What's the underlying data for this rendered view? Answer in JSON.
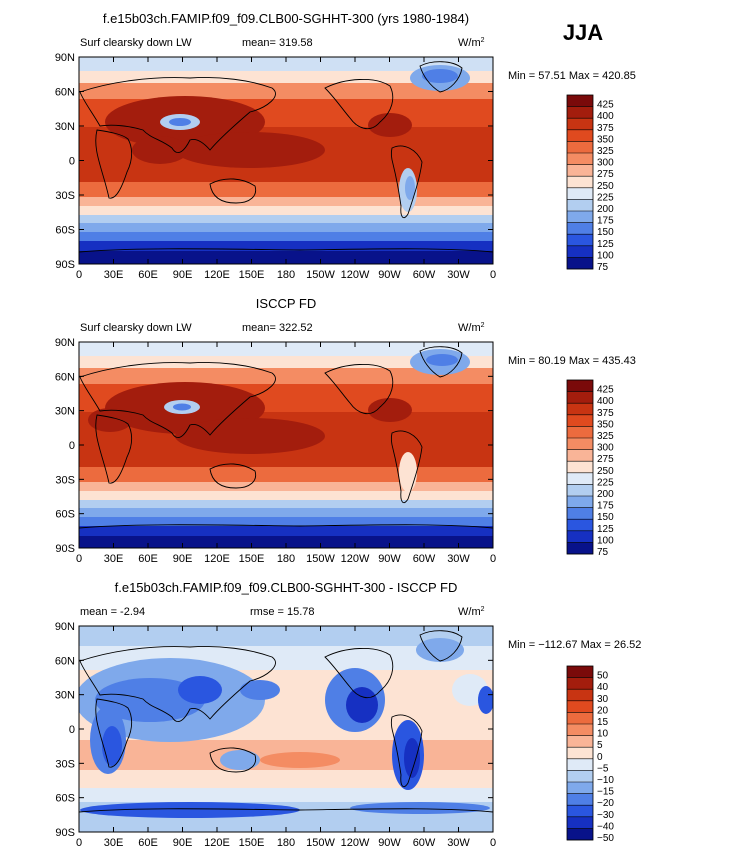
{
  "season": "JJA",
  "units": "W/m",
  "units_sup": "2",
  "lon_ticks": [
    "0",
    "30E",
    "60E",
    "90E",
    "120E",
    "150E",
    "180",
    "150W",
    "120W",
    "90W",
    "60W",
    "30W",
    "0"
  ],
  "lat_ticks": [
    "90N",
    "60N",
    "30N",
    "0",
    "30S",
    "60S",
    "90S"
  ],
  "chart_data": [
    {
      "type": "heatmap",
      "title": "f.e15b03ch.FAMIP.f09_f09.CLB00-SGHHT-300 (yrs 1980-1984)",
      "left_label": "Surf clearsky down LW",
      "center_label": "mean=  319.58",
      "minmax_label": "Min =   57.51  Max =  420.85",
      "min": 57.51,
      "max": 420.85,
      "mean": 319.58,
      "colorbar_levels": [
        "425",
        "400",
        "375",
        "350",
        "325",
        "300",
        "275",
        "250",
        "225",
        "200",
        "175",
        "150",
        "125",
        "100",
        "75"
      ],
      "palette": "abs"
    },
    {
      "type": "heatmap",
      "title": "ISCCP FD",
      "left_label": "Surf clearsky down LW",
      "center_label": "mean=  322.52",
      "minmax_label": "Min =   80.19  Max =  435.43",
      "min": 80.19,
      "max": 435.43,
      "mean": 322.52,
      "colorbar_levels": [
        "425",
        "400",
        "375",
        "350",
        "325",
        "300",
        "275",
        "250",
        "225",
        "200",
        "175",
        "150",
        "125",
        "100",
        "75"
      ],
      "palette": "abs"
    },
    {
      "type": "heatmap",
      "title": "f.e15b03ch.FAMIP.f09_f09.CLB00-SGHHT-300 - ISCCP FD",
      "left_label": "mean =    -2.94",
      "center_label": "rmse =   15.78",
      "minmax_label": "Min = −112.67  Max =   26.52",
      "min": -112.67,
      "max": 26.52,
      "mean": -2.94,
      "rmse": 15.78,
      "colorbar_levels": [
        "50",
        "40",
        "30",
        "20",
        "15",
        "10",
        "5",
        "0",
        "−5",
        "−10",
        "−15",
        "−20",
        "−30",
        "−40",
        "−50"
      ],
      "palette": "diff"
    }
  ],
  "colors": {
    "abs": [
      "#7a0a0a",
      "#a31d0d",
      "#c83412",
      "#e04a1f",
      "#ec6b3e",
      "#f48c63",
      "#f9b497",
      "#fde3d3",
      "#dfeaf7",
      "#b2cef0",
      "#7fa9eb",
      "#4f7fe6",
      "#2a56e0",
      "#1630c2",
      "#08128a"
    ],
    "diff": [
      "#7a0a0a",
      "#a31d0d",
      "#c83412",
      "#e04a1f",
      "#ec6b3e",
      "#f48c63",
      "#f9b497",
      "#fde3d3",
      "#dfeaf7",
      "#b2cef0",
      "#7fa9eb",
      "#4f7fe6",
      "#2a56e0",
      "#1630c2",
      "#08128a"
    ]
  }
}
